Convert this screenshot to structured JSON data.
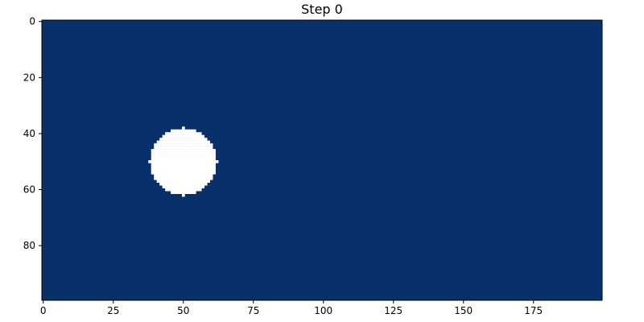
{
  "chart_data": {
    "type": "heatmap",
    "title": "Step 0",
    "xlabel": "",
    "ylabel": "",
    "grid": false,
    "legend": "none",
    "image_shape": [
      100,
      200
    ],
    "xlim": [
      -0.5,
      199.5
    ],
    "ylim": [
      99.5,
      -0.5
    ],
    "x_ticks": [
      0,
      25,
      50,
      75,
      100,
      125,
      150,
      175
    ],
    "x_tick_labels": [
      "0",
      "25",
      "50",
      "75",
      "100",
      "125",
      "150",
      "175"
    ],
    "y_ticks": [
      0,
      20,
      40,
      60,
      80
    ],
    "y_tick_labels": [
      "0",
      "20",
      "40",
      "60",
      "80"
    ],
    "background_value": 0,
    "background_color": "#08306b",
    "features": [
      {
        "shape": "disk",
        "center_x": 50,
        "center_y": 50,
        "radius": 12,
        "value": 1,
        "color": "#ffffff"
      }
    ]
  }
}
